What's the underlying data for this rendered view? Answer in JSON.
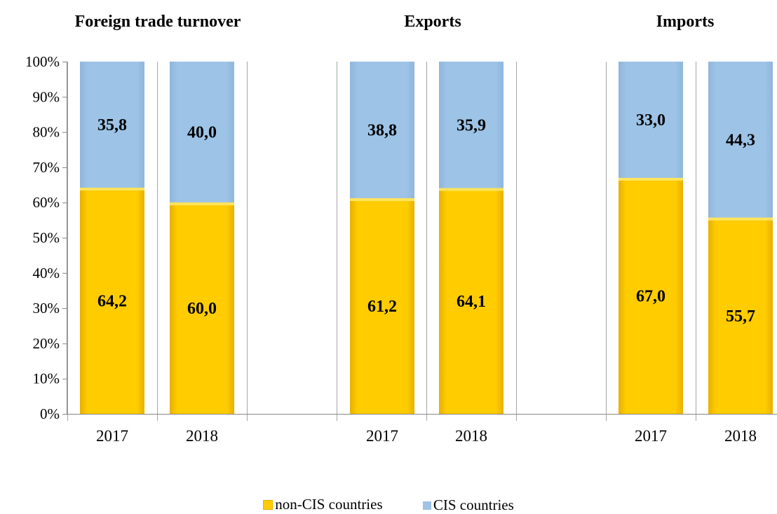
{
  "chart_data": {
    "type": "bar",
    "stacked": true,
    "percent_scale": true,
    "ylim": [
      0,
      100
    ],
    "yticks": [
      "0%",
      "10%",
      "20%",
      "30%",
      "40%",
      "50%",
      "60%",
      "70%",
      "80%",
      "90%",
      "100%"
    ],
    "groups": [
      {
        "title": "Foreign trade turnover",
        "categories": [
          "2017",
          "2018"
        ],
        "non_cis": [
          64.2,
          60.0
        ],
        "cis": [
          35.8,
          40.0
        ],
        "non_cis_labels": [
          "64,2",
          "60,0"
        ],
        "cis_labels": [
          "35,8",
          "40,0"
        ]
      },
      {
        "title": "Exports",
        "categories": [
          "2017",
          "2018"
        ],
        "non_cis": [
          61.2,
          64.1
        ],
        "cis": [
          38.8,
          35.9
        ],
        "non_cis_labels": [
          "61,2",
          "64,1"
        ],
        "cis_labels": [
          "38,8",
          "35,9"
        ]
      },
      {
        "title": "Imports",
        "categories": [
          "2017",
          "2018"
        ],
        "non_cis": [
          67.0,
          55.7
        ],
        "cis": [
          33.0,
          44.3
        ],
        "non_cis_labels": [
          "67,0",
          "55,7"
        ],
        "cis_labels": [
          "33,0",
          "44,3"
        ]
      }
    ],
    "series": [
      {
        "name": "non-CIS countries",
        "color": "#FFCC00"
      },
      {
        "name": "CIS countries",
        "color": "#9DC3E6"
      }
    ],
    "legend_position": "bottom",
    "grid": false
  }
}
